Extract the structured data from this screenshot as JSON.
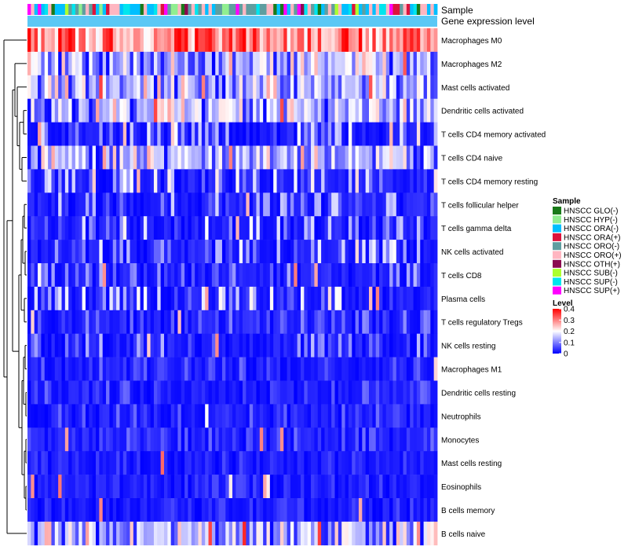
{
  "chart_data": {
    "type": "heatmap",
    "title": "",
    "annotation_labels": {
      "sample": "Sample",
      "gene_expression": "Gene expression level"
    },
    "rows": [
      "Macrophages M0",
      "Macrophages M2",
      "Mast cells activated",
      "Dendritic cells activated",
      "T cells CD4 memory activated",
      "T cells CD4 naive",
      "T cells CD4 memory resting",
      "T cells follicular helper",
      "T cells gamma delta",
      "NK cells activated",
      "T cells CD8",
      "Plasma cells",
      "T cells regulatory  Tregs",
      "NK cells resting",
      "Macrophages M1",
      "Dendritic cells resting",
      "Neutrophils",
      "Monocytes",
      "Mast cells resting",
      "Eosinophils",
      "B cells memory",
      "B cells naive"
    ],
    "row_mean_level": [
      0.3,
      0.1,
      0.12,
      0.13,
      0.08,
      0.11,
      0.08,
      0.06,
      0.07,
      0.07,
      0.05,
      0.07,
      0.04,
      0.05,
      0.03,
      0.03,
      0.03,
      0.03,
      0.02,
      0.02,
      0.02,
      0.12
    ],
    "n_samples": 120,
    "sample_legend": {
      "title": "Sample",
      "items": [
        {
          "label": "HNSCC GLO(-)",
          "color": "#1a7a1a"
        },
        {
          "label": "HNSCC HYP(-)",
          "color": "#90ee90"
        },
        {
          "label": "HNSCC ORA(-)",
          "color": "#00bfff"
        },
        {
          "label": "HNSCC ORA(+)",
          "color": "#dc143c"
        },
        {
          "label": "HNSCC ORO(-)",
          "color": "#5f9ea0"
        },
        {
          "label": "HNSCC ORO(+)",
          "color": "#ffb6c1"
        },
        {
          "label": "HNSCC OTH(+)",
          "color": "#8b0a50"
        },
        {
          "label": "HNSCC SUB(-)",
          "color": "#adff2f"
        },
        {
          "label": "HNSCC SUP(-)",
          "color": "#00e5ee"
        },
        {
          "label": "HNSCC SUP(+)",
          "color": "#ff00ff"
        }
      ]
    },
    "level_legend": {
      "title": "Level",
      "min": 0,
      "max": 0.4,
      "ticks": [
        "0.4",
        "0.3",
        "0.2",
        "0.1",
        "0"
      ],
      "tick_values": [
        0.4,
        0.3,
        0.2,
        0.1,
        0
      ],
      "colors": [
        "#0000ff",
        "#ffffff",
        "#ff0000"
      ]
    },
    "gene_expression_color": "#5bc8f5",
    "dendrogram": "row-clustered"
  }
}
